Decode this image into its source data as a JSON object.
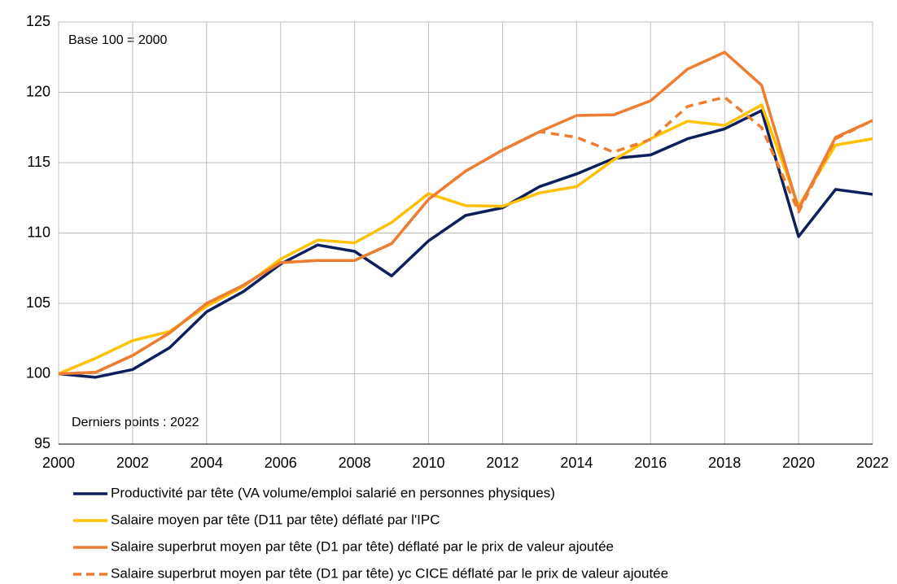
{
  "chart_data": {
    "type": "line",
    "annotations": [
      "Base 100 = 2000",
      "Derniers points : 2022"
    ],
    "x": [
      2000,
      2001,
      2002,
      2003,
      2004,
      2005,
      2006,
      2007,
      2008,
      2009,
      2010,
      2011,
      2012,
      2013,
      2014,
      2015,
      2016,
      2017,
      2018,
      2019,
      2020,
      2021,
      2022
    ],
    "xlim": [
      2000,
      2022
    ],
    "xticks": [
      2000,
      2002,
      2004,
      2006,
      2008,
      2010,
      2012,
      2014,
      2016,
      2018,
      2020,
      2022
    ],
    "ylim": [
      95,
      125
    ],
    "yticks": [
      95,
      100,
      105,
      110,
      115,
      120,
      125
    ],
    "grid": true,
    "legend": "bottom",
    "series": [
      {
        "name": "Productivité par tête (VA volume/emploi salarié en personnes physiques)",
        "color": "#0d1f5c",
        "dash": false,
        "values": [
          100,
          99.75,
          100.3,
          101.85,
          104.4,
          105.85,
          107.8,
          109.15,
          108.7,
          106.95,
          109.45,
          111.25,
          111.8,
          113.3,
          114.2,
          115.3,
          115.55,
          116.7,
          117.4,
          118.7,
          109.75,
          113.1,
          112.75
        ]
      },
      {
        "name": "Salaire moyen par tête (D11 par tête) déflaté par l'IPC",
        "color": "#ffc000",
        "dash": false,
        "values": [
          100,
          101.1,
          102.35,
          103.0,
          104.8,
          106.2,
          108.15,
          109.5,
          109.3,
          110.75,
          112.8,
          111.95,
          111.9,
          112.85,
          113.3,
          115.2,
          116.7,
          117.95,
          117.65,
          119.1,
          111.9,
          116.25,
          116.7
        ]
      },
      {
        "name": "Salaire superbrut moyen par tête (D1 par tête) déflaté par le prix de valeur ajoutée",
        "color": "#ed7d31",
        "dash": false,
        "values": [
          100,
          100.1,
          101.3,
          102.9,
          105.0,
          106.3,
          107.9,
          108.05,
          108.05,
          109.25,
          112.4,
          114.4,
          115.9,
          117.2,
          118.35,
          118.4,
          119.4,
          121.65,
          122.85,
          120.5,
          111.7,
          116.8,
          118.0
        ]
      },
      {
        "name": "Salaire superbrut moyen par tête (D1 par tête) yc CICE déflaté par le prix de valeur ajoutée",
        "color": "#ed7d31",
        "dash": true,
        "values": [
          100,
          100.1,
          101.3,
          102.9,
          105.0,
          106.3,
          107.9,
          108.05,
          108.05,
          109.25,
          112.4,
          114.4,
          115.9,
          117.2,
          116.8,
          115.75,
          116.65,
          119.0,
          119.65,
          117.5,
          111.5,
          116.7,
          118.0
        ]
      }
    ]
  }
}
